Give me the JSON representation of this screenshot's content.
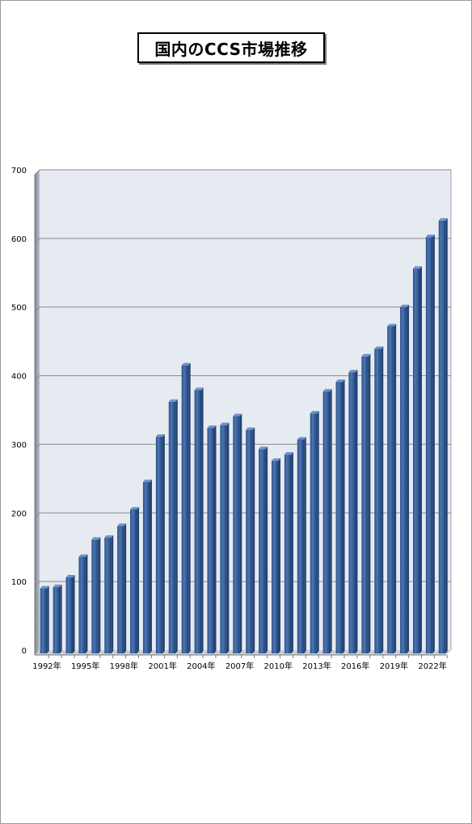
{
  "title": "国内のCCS市場推移",
  "chart_data": {
    "type": "bar",
    "title": "国内のCCS市場推移",
    "xlabel": "",
    "ylabel": "",
    "ylim": [
      0,
      700
    ],
    "yticks": [
      0,
      100,
      200,
      300,
      400,
      500,
      600,
      700
    ],
    "grid": true,
    "categories": [
      "1992年",
      "1993年",
      "1994年",
      "1995年",
      "1996年",
      "1997年",
      "1998年",
      "1999年",
      "2000年",
      "2001年",
      "2002年",
      "2003年",
      "2004年",
      "2005年",
      "2006年",
      "2007年",
      "2008年",
      "2009年",
      "2010年",
      "2011年",
      "2012年",
      "2013年",
      "2014年",
      "2015年",
      "2016年",
      "2017年",
      "2018年",
      "2019年",
      "2020年",
      "2021年",
      "2022年",
      "2023年"
    ],
    "visible_xtick_labels": [
      "1992年",
      "1995年",
      "1998年",
      "2001年",
      "2004年",
      "2007年",
      "2010年",
      "2013年",
      "2016年",
      "2019年",
      "2022年"
    ],
    "values": [
      90,
      92,
      106,
      136,
      161,
      164,
      181,
      205,
      245,
      311,
      362,
      415,
      379,
      324,
      328,
      341,
      321,
      293,
      276,
      285,
      307,
      345,
      377,
      391,
      405,
      428,
      439,
      472,
      500,
      556,
      602,
      626
    ],
    "colors": {
      "bar": "#3a64a0",
      "bar_dark": "#234273",
      "bar_light": "#6d93c9",
      "plot_bg": "#e6ebf2",
      "grid": "#8a8a8a"
    }
  }
}
